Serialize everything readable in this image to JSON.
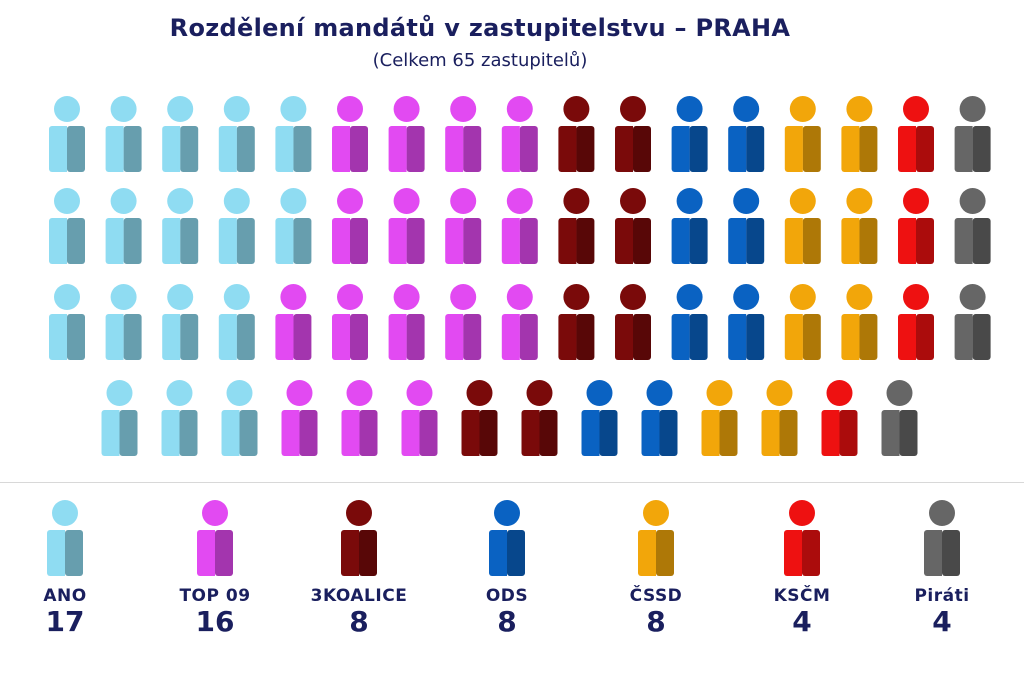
{
  "chart_data": {
    "type": "pictogram",
    "title": "Rozdělení mandátů v zastupitelstvu – PRAHA",
    "subtitle": "(Celkem 65 zastupitelů)",
    "categories": [
      "ANO",
      "TOP 09",
      "3KOALICE",
      "ODS",
      "ČSSD",
      "KSČM",
      "Piráti"
    ],
    "values": [
      17,
      16,
      8,
      8,
      8,
      4,
      4
    ],
    "colors": [
      "#8fdcf2",
      "#e24af2",
      "#7a0a0a",
      "#0a62c2",
      "#f2a60a",
      "#ee1111",
      "#666666"
    ],
    "rows": [
      [
        5,
        4,
        2,
        2,
        2,
        1,
        1
      ],
      [
        5,
        4,
        2,
        2,
        2,
        1,
        1
      ],
      [
        4,
        5,
        2,
        2,
        2,
        1,
        1
      ],
      [
        3,
        3,
        2,
        2,
        2,
        1,
        1
      ]
    ]
  },
  "legend": [
    {
      "label": "ANO",
      "count": "17"
    },
    {
      "label": "TOP 09",
      "count": "16"
    },
    {
      "label": "3KOALICE",
      "count": "8"
    },
    {
      "label": "ODS",
      "count": "8"
    },
    {
      "label": "ČSSD",
      "count": "8"
    },
    {
      "label": "KSČM",
      "count": "4"
    },
    {
      "label": "Piráti",
      "count": "4"
    }
  ]
}
